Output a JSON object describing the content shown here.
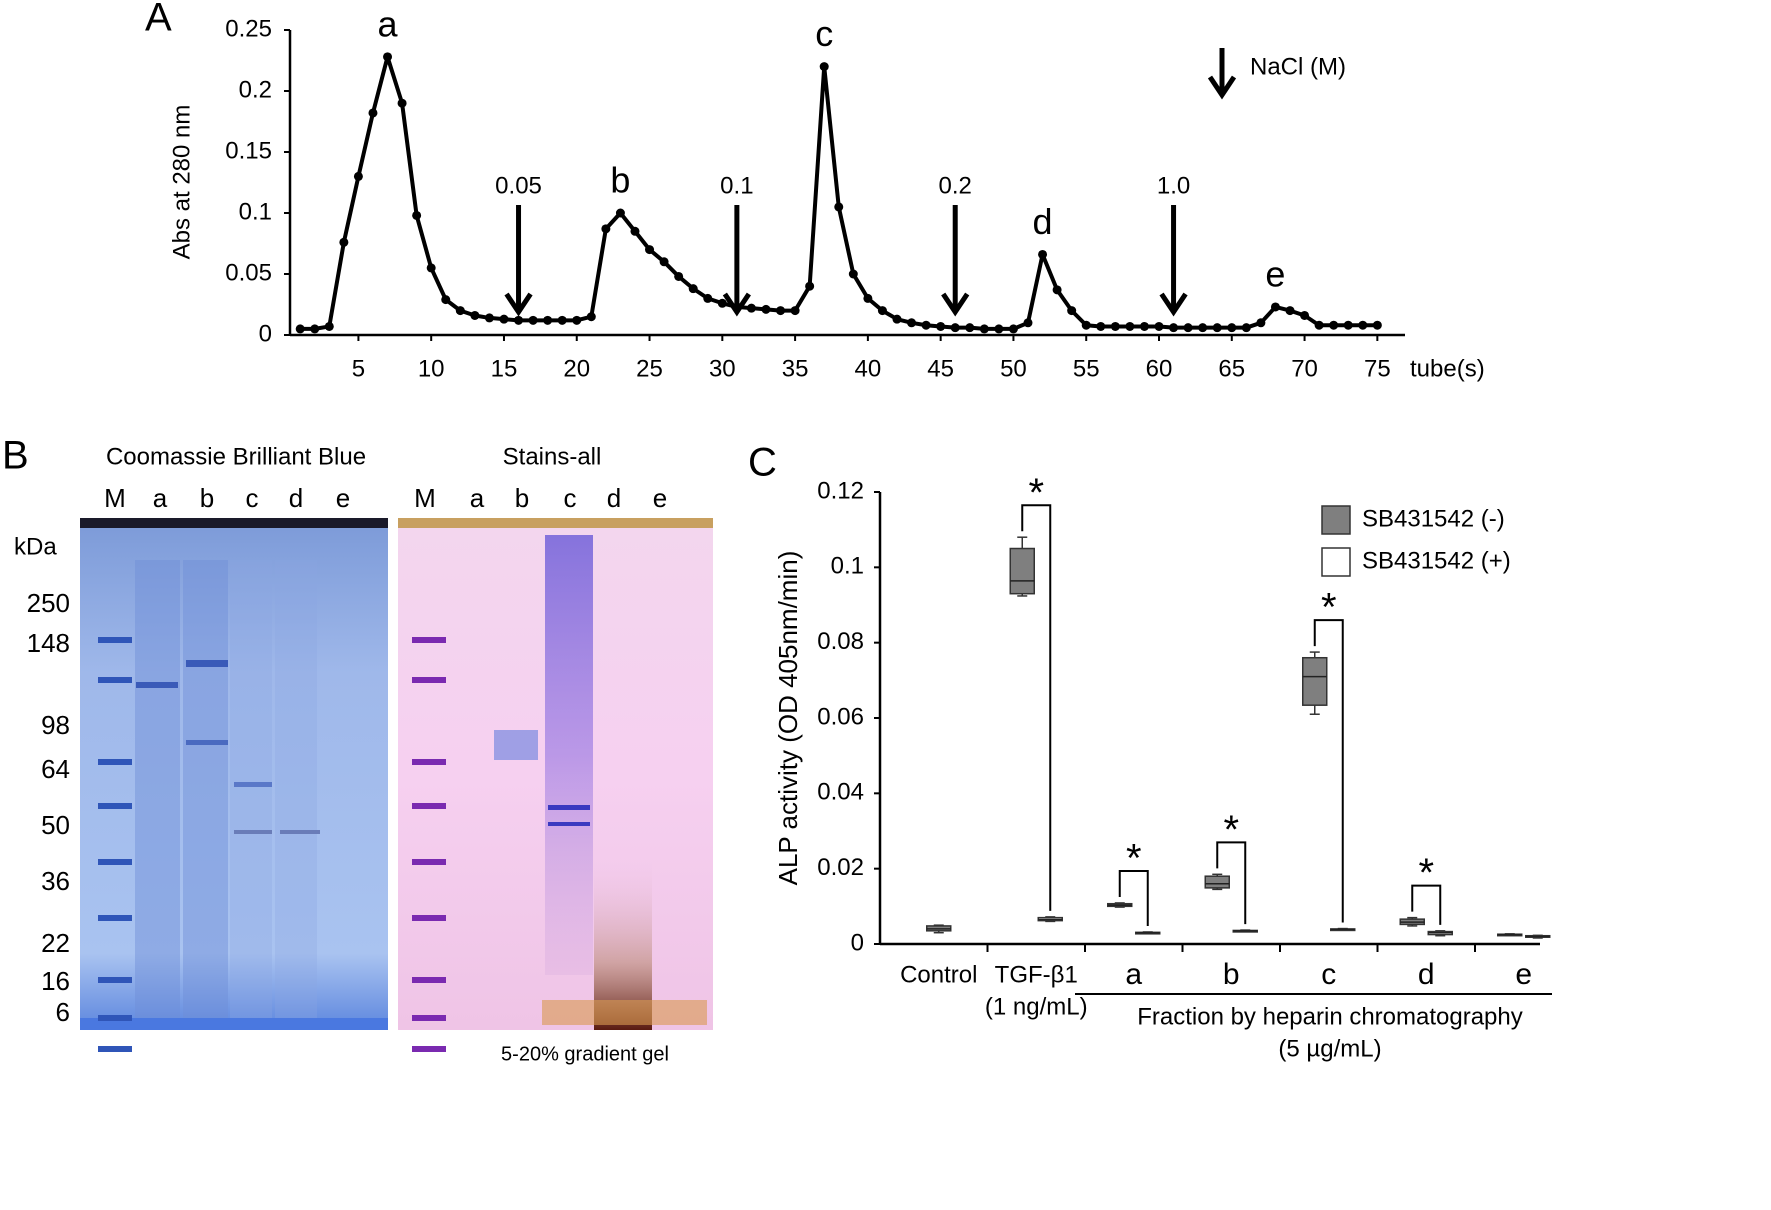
{
  "chart_data": [
    {
      "type": "line",
      "panel": "A",
      "y_label": "Abs at 280 nm",
      "x_label": "tube(s)",
      "color": "#000000",
      "markers": true,
      "x": [
        1,
        2,
        3,
        4,
        5,
        6,
        7,
        8,
        9,
        10,
        11,
        12,
        13,
        14,
        15,
        16,
        17,
        18,
        19,
        20,
        21,
        22,
        23,
        24,
        25,
        26,
        27,
        28,
        29,
        30,
        31,
        32,
        33,
        34,
        35,
        36,
        37,
        38,
        39,
        40,
        41,
        42,
        43,
        44,
        45,
        46,
        47,
        48,
        49,
        50,
        51,
        52,
        53,
        54,
        55,
        56,
        57,
        58,
        59,
        60,
        61,
        62,
        63,
        64,
        65,
        66,
        67,
        68,
        69,
        70,
        71,
        72,
        73,
        74,
        75
      ],
      "values": [
        0.005,
        0.005,
        0.007,
        0.076,
        0.13,
        0.182,
        0.228,
        0.19,
        0.098,
        0.055,
        0.029,
        0.02,
        0.016,
        0.014,
        0.013,
        0.012,
        0.012,
        0.012,
        0.012,
        0.012,
        0.015,
        0.087,
        0.1,
        0.085,
        0.07,
        0.06,
        0.048,
        0.038,
        0.03,
        0.026,
        0.023,
        0.022,
        0.021,
        0.02,
        0.02,
        0.04,
        0.22,
        0.105,
        0.05,
        0.03,
        0.02,
        0.013,
        0.01,
        0.008,
        0.007,
        0.006,
        0.006,
        0.005,
        0.005,
        0.005,
        0.01,
        0.066,
        0.037,
        0.02,
        0.008,
        0.007,
        0.007,
        0.007,
        0.007,
        0.007,
        0.006,
        0.006,
        0.006,
        0.006,
        0.006,
        0.006,
        0.01,
        0.023,
        0.02,
        0.016,
        0.008,
        0.008,
        0.008,
        0.008,
        0.008
      ],
      "xlim": [
        0.3,
        76.9
      ],
      "ylim": [
        0,
        0.25
      ],
      "xticks": [
        5,
        10,
        15,
        20,
        25,
        30,
        35,
        40,
        45,
        50,
        55,
        60,
        65,
        70,
        75
      ],
      "yticks": [
        0,
        0.05,
        0.1,
        0.15,
        0.2,
        0.25
      ],
      "peak_labels": [
        {
          "tube": 7,
          "label": "a"
        },
        {
          "tube": 23,
          "label": "b"
        },
        {
          "tube": 37,
          "label": "c"
        },
        {
          "tube": 52,
          "label": "d"
        },
        {
          "tube": 68,
          "label": "e"
        }
      ],
      "nacl_steps": [
        {
          "tube": 16,
          "label": "0.05"
        },
        {
          "tube": 31,
          "label": "0.1"
        },
        {
          "tube": 46,
          "label": "0.2"
        },
        {
          "tube": 61,
          "label": "1.0"
        }
      ],
      "nacl_legend": "NaCl (M)"
    },
    {
      "type": "box",
      "panel": "C",
      "y_label": "ALP activity (OD 405nm/min)",
      "categories": [
        "Control",
        "TGF-β1",
        "a",
        "b",
        "c",
        "d",
        "e"
      ],
      "category_note": "(1 ng/mL)",
      "group_label": "Fraction by heparin chromatography",
      "group_sublabel": "(5 µg/mL)",
      "ylim": [
        0,
        0.12
      ],
      "yticks": [
        0,
        0.02,
        0.04,
        0.06,
        0.08,
        0.1,
        0.12
      ],
      "series": [
        {
          "name": "SB431542 (-)",
          "color": "#7f7f7f",
          "boxes": [
            {
              "min": 0.003,
              "q1": 0.0035,
              "median": 0.004,
              "q3": 0.0048,
              "max": 0.005
            },
            {
              "min": 0.0924,
              "q1": 0.093,
              "median": 0.0964,
              "q3": 0.105,
              "max": 0.108
            },
            {
              "min": 0.0098,
              "q1": 0.01,
              "median": 0.0103,
              "q3": 0.0107,
              "max": 0.0109
            },
            {
              "min": 0.0145,
              "q1": 0.0149,
              "median": 0.016,
              "q3": 0.018,
              "max": 0.0185
            },
            {
              "min": 0.061,
              "q1": 0.0634,
              "median": 0.071,
              "q3": 0.076,
              "max": 0.0775
            },
            {
              "min": 0.0048,
              "q1": 0.0052,
              "median": 0.0058,
              "q3": 0.0066,
              "max": 0.007
            },
            {
              "min": 0.0023,
              "q1": 0.0024,
              "median": 0.0025,
              "q3": 0.0026,
              "max": 0.0027
            }
          ]
        },
        {
          "name": "SB431542 (+)",
          "color": "#ffffff",
          "boxes": [
            null,
            {
              "min": 0.006,
              "q1": 0.0062,
              "median": 0.0065,
              "q3": 0.007,
              "max": 0.0072
            },
            {
              "min": 0.0028,
              "q1": 0.0029,
              "median": 0.003,
              "q3": 0.0031,
              "max": 0.0032
            },
            {
              "min": 0.0033,
              "q1": 0.0034,
              "median": 0.0035,
              "q3": 0.0036,
              "max": 0.0037
            },
            {
              "min": 0.0037,
              "q1": 0.0038,
              "median": 0.0039,
              "q3": 0.004,
              "max": 0.0041
            },
            {
              "min": 0.0022,
              "q1": 0.0025,
              "median": 0.003,
              "q3": 0.0033,
              "max": 0.0035
            },
            {
              "min": 0.0016,
              "q1": 0.0018,
              "median": 0.002,
              "q3": 0.0022,
              "max": 0.0023
            }
          ]
        }
      ],
      "significance": [
        null,
        "*",
        "*",
        "*",
        "*",
        "*",
        null
      ]
    }
  ],
  "gel": {
    "panel": "B",
    "titles": [
      "Coomassie Brilliant Blue",
      "Stains-all"
    ],
    "lanes": [
      "M",
      "a",
      "b",
      "c",
      "d",
      "e"
    ],
    "unit": "kDa",
    "markers": [
      250,
      148,
      98,
      64,
      50,
      36,
      22,
      16,
      6
    ],
    "note": "5-20% gradient gel"
  }
}
